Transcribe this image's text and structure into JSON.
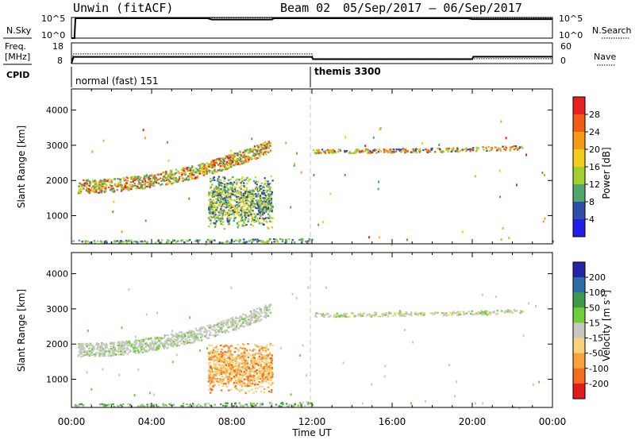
{
  "header": {
    "radar": "Unwin (fitACF)",
    "beam": "Beam 02",
    "date_range": "05/Sep/2017 – 06/Sep/2017"
  },
  "left_labels": {
    "nsky": "N.Sky",
    "freq_line1": "Freq.",
    "freq_line2": "[MHz]",
    "cpid": "CPID"
  },
  "right_labels": {
    "nsearch": "N.Search",
    "nave": "Nave"
  },
  "noise_axis_ticks": [
    "10^5",
    "10^0"
  ],
  "freq_axis_ticks": [
    "18",
    "8"
  ],
  "nave_axis_ticks": [
    "60",
    "0"
  ],
  "cpid_segments": [
    {
      "label": "normal (fast) 151",
      "start_hour": 0
    },
    {
      "label": "themis 3300",
      "start_hour": 12
    }
  ],
  "power_colorbar": {
    "label": "Power [dB]",
    "ticks": [
      "28",
      "24",
      "20",
      "16",
      "12",
      "8",
      "4"
    ],
    "colors": [
      "#e81f1f",
      "#f25d15",
      "#f79a14",
      "#f4cc1a",
      "#a2d12f",
      "#4ea86b",
      "#2f4fa8",
      "#1f1fe8"
    ]
  },
  "velocity_colorbar": {
    "label": "Velocity [m s",
    "label_sup": "-1",
    "label_end": "]",
    "ticks": [
      "200",
      "100",
      "50",
      "15",
      "-15",
      "-50",
      "-100",
      "-200"
    ],
    "colors": [
      "#2324a8",
      "#2b6ea6",
      "#3f9a4a",
      "#6fcf3a",
      "#c8c8c0",
      "#f6d27a",
      "#f7a23a",
      "#f26d1c",
      "#e31a1a"
    ]
  },
  "x_axis": {
    "label": "Time UT",
    "ticks": [
      "00:00",
      "04:00",
      "08:00",
      "12:00",
      "16:00",
      "20:00",
      "00:00"
    ]
  },
  "chart_data": [
    {
      "type": "line",
      "name": "noise-panel",
      "ylabel": "N.Sky",
      "x": [
        0,
        0.15,
        0.2,
        6.8,
        7.0,
        10.0,
        10.1,
        11.9,
        12.0,
        19.8,
        20.0,
        24
      ],
      "nsky": [
        0,
        0,
        4.8,
        4.8,
        4.5,
        4.5,
        4.8,
        4.8,
        4.8,
        4.8,
        4.6,
        4.6
      ],
      "nsearch": [
        0,
        0,
        4.9,
        4.9,
        4.9,
        4.9,
        4.9,
        4.9,
        4.9,
        4.9,
        4.9,
        4.9
      ],
      "ylim": [
        0,
        5
      ]
    },
    {
      "type": "line",
      "name": "freq-nave-panel",
      "x": [
        0,
        0.1,
        12,
        12.05,
        20,
        20.05,
        24
      ],
      "freq_mhz": [
        8,
        11.2,
        11.2,
        10.1,
        10.1,
        11.3,
        11.3
      ],
      "nave": [
        0,
        28,
        28,
        14,
        14,
        14,
        14
      ],
      "freq_ylim": [
        8,
        18
      ],
      "nave_ylim": [
        0,
        60
      ]
    },
    {
      "type": "heatmap",
      "name": "power-panel",
      "xlabel": "Time UT",
      "ylabel": "Slant Range [km]",
      "xlim": [
        0,
        24
      ],
      "ylim": [
        200,
        4600
      ],
      "y_ticks": [
        1000,
        2000,
        3000,
        4000
      ],
      "regions": [
        {
          "t0": 0.3,
          "t1": 9.9,
          "r_start": 1850,
          "r_end": 3000,
          "width": 380,
          "values": [
            8,
            10,
            12,
            16,
            20,
            24,
            28
          ]
        },
        {
          "t0": 6.8,
          "t1": 10.0,
          "r_start": 900,
          "r_end": 1900,
          "width": 600,
          "values": [
            4,
            8,
            12,
            16
          ]
        },
        {
          "t0": 12.0,
          "t1": 22.5,
          "r_start": 2850,
          "r_end": 2950,
          "width": 120,
          "values": [
            4,
            12,
            20,
            24
          ]
        },
        {
          "t0": 0.0,
          "t1": 12.0,
          "r_start": 250,
          "r_end": 300,
          "width": 150,
          "values": [
            4,
            8,
            12
          ]
        }
      ]
    },
    {
      "type": "heatmap",
      "name": "velocity-panel",
      "xlabel": "Time UT",
      "ylabel": "Slant Range [km]",
      "xlim": [
        0,
        24
      ],
      "ylim": [
        200,
        4600
      ],
      "y_ticks": [
        1000,
        2000,
        3000,
        4000
      ],
      "regions": [
        {
          "t0": 0.3,
          "t1": 9.9,
          "r_start": 1850,
          "r_end": 3000,
          "width": 380,
          "values": [
            0,
            0,
            0,
            -15,
            15
          ]
        },
        {
          "t0": 6.8,
          "t1": 10.0,
          "r_start": 900,
          "r_end": 1800,
          "width": 600,
          "values": [
            -50,
            -100,
            -200,
            -50
          ]
        },
        {
          "t0": 12.0,
          "t1": 22.5,
          "r_start": 2850,
          "r_end": 2950,
          "width": 120,
          "values": [
            -15,
            -50,
            15,
            0
          ]
        },
        {
          "t0": 0.0,
          "t1": 12.0,
          "r_start": 250,
          "r_end": 300,
          "width": 150,
          "values": [
            15,
            50,
            -15
          ]
        }
      ]
    }
  ]
}
